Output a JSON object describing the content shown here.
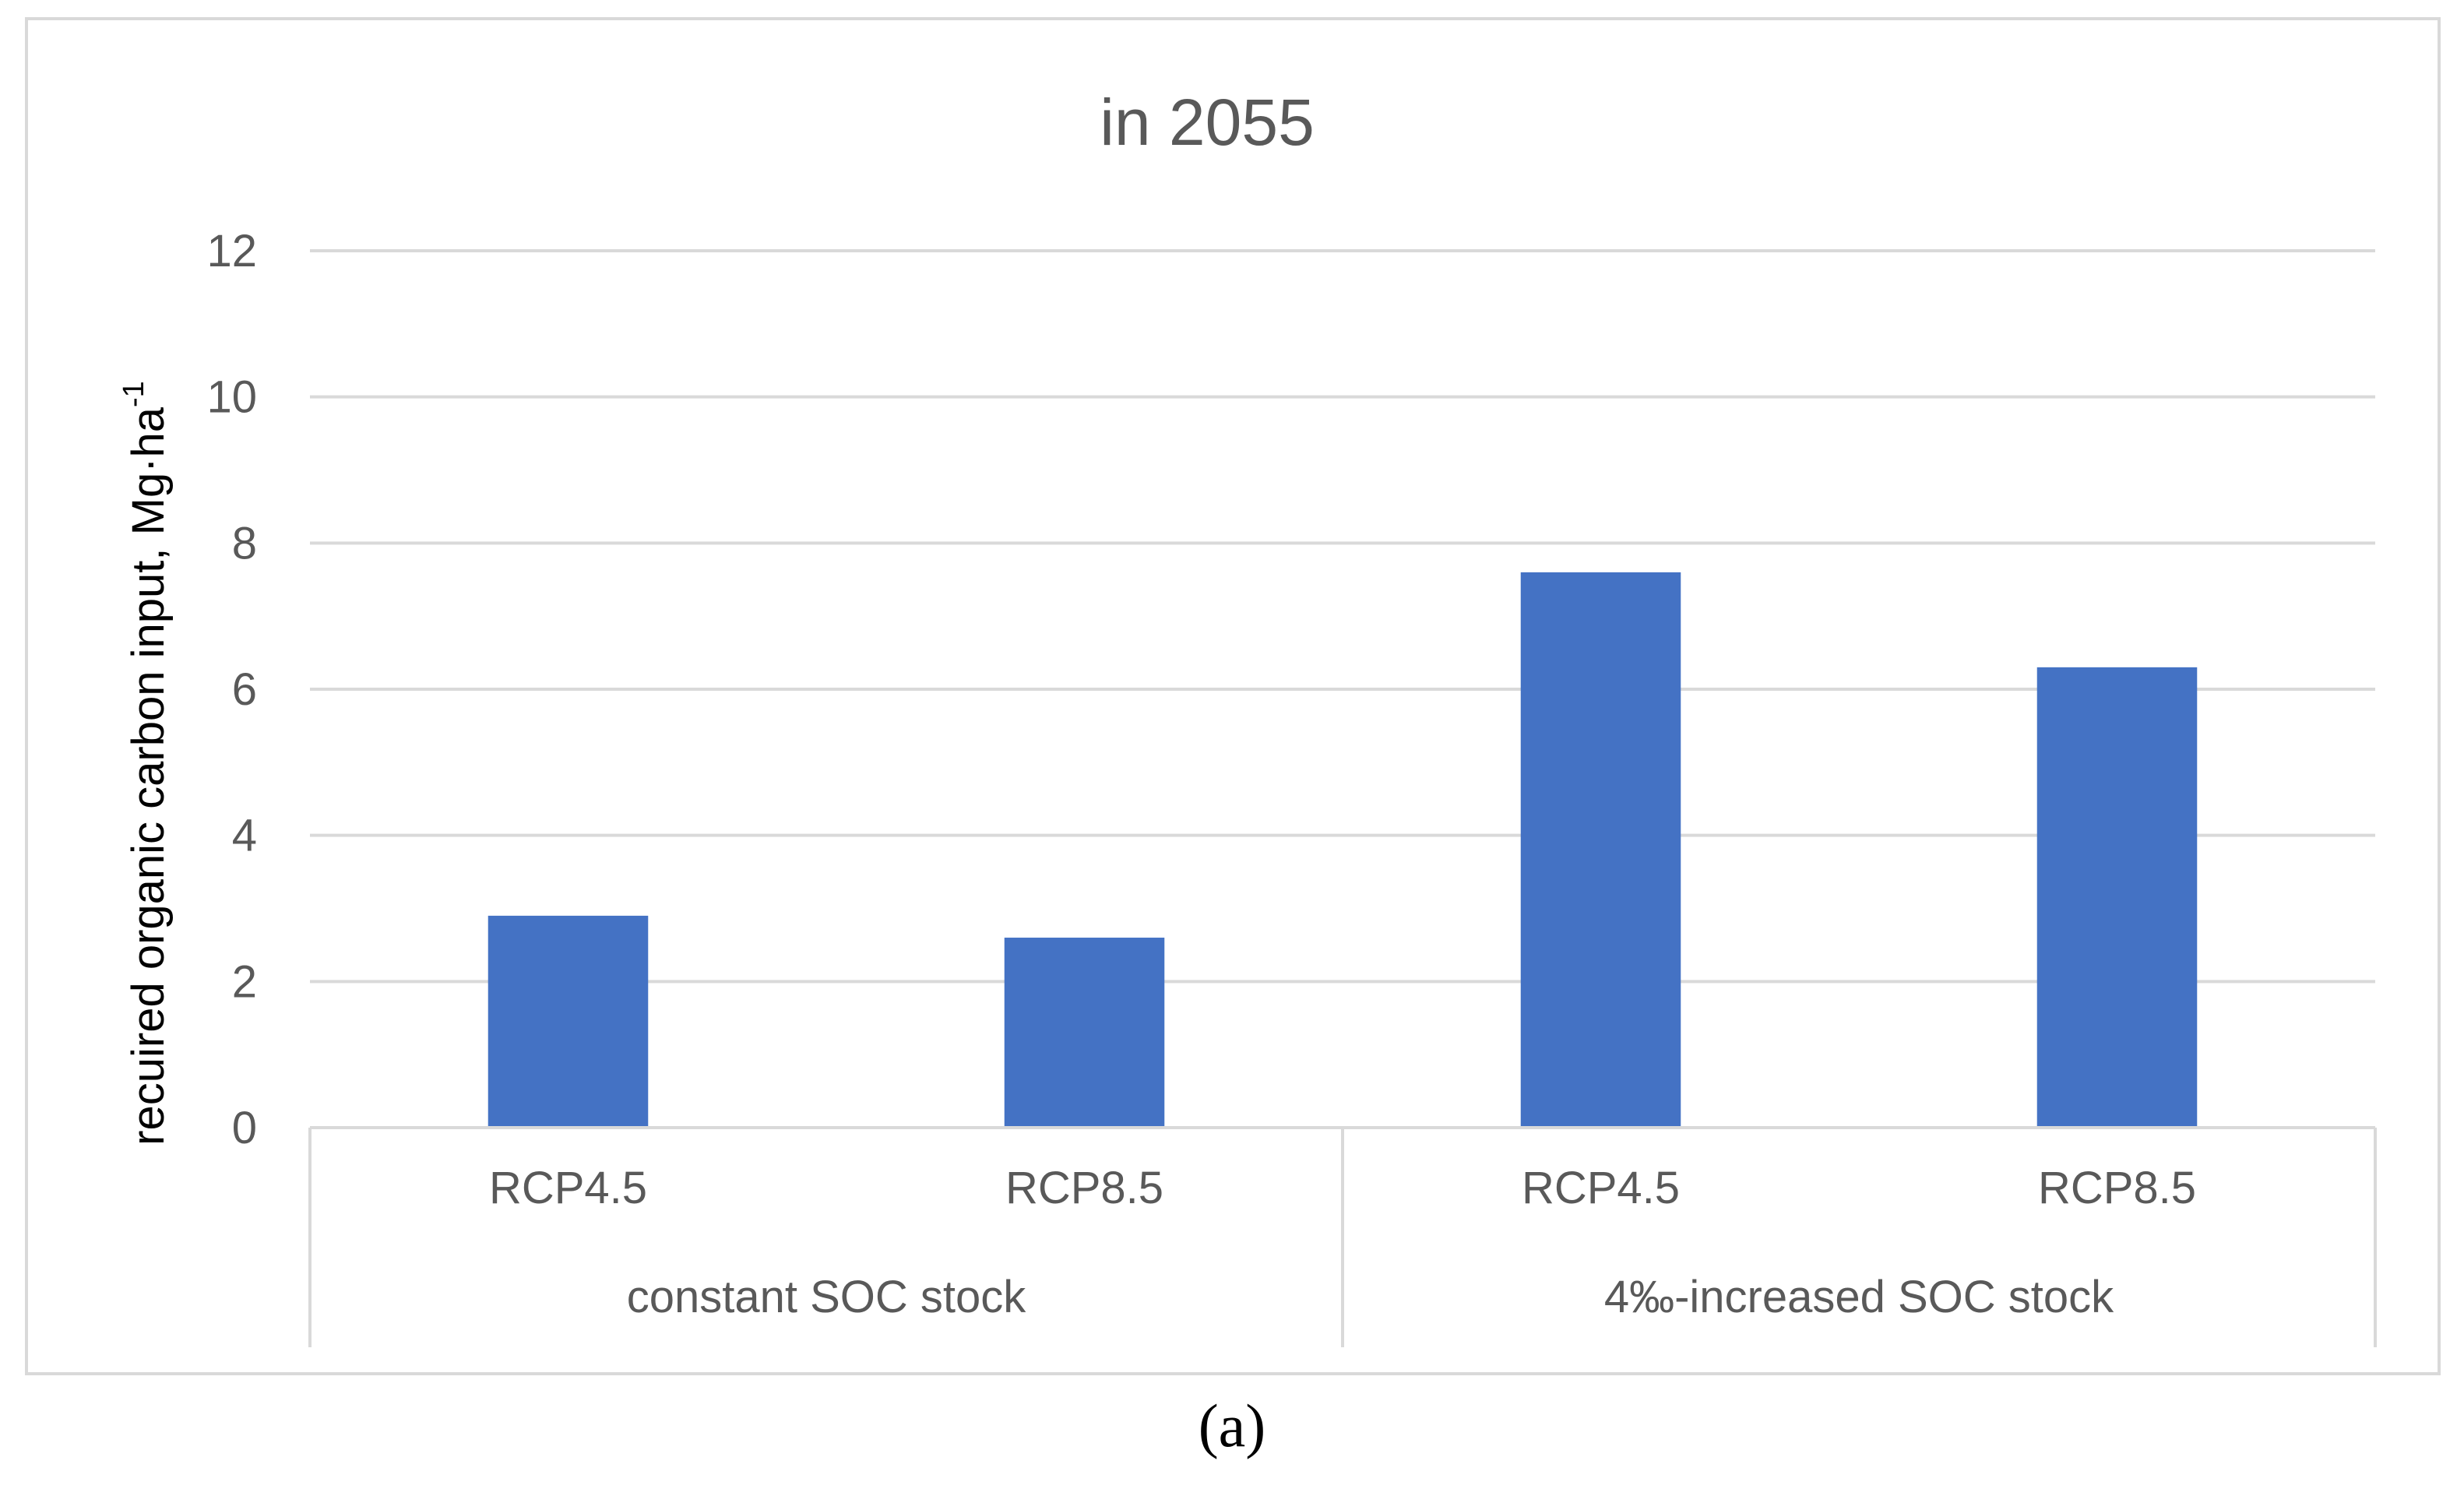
{
  "caption": "(a)",
  "colors": {
    "bar": "#4472C4",
    "grid": "#d9d9d9",
    "text": "#595959",
    "frame": "#d9d9d9"
  },
  "chart_data": {
    "type": "bar",
    "title": "in 2055",
    "ylabel_main": "recuired organic carbon input, Mg·ha",
    "ylabel_sup": "-1",
    "ylim": [
      0,
      12
    ],
    "yticks": [
      0,
      2,
      4,
      6,
      8,
      10,
      12
    ],
    "grid": true,
    "legend": "none",
    "groups": [
      {
        "label": "constant SOC stock",
        "categories": [
          "RCP4.5",
          "RCP8.5"
        ],
        "values": [
          2.9,
          2.6
        ]
      },
      {
        "label": "4‰-increased SOC stock",
        "categories": [
          "RCP4.5",
          "RCP8.5"
        ],
        "values": [
          7.6,
          6.3
        ]
      }
    ]
  }
}
